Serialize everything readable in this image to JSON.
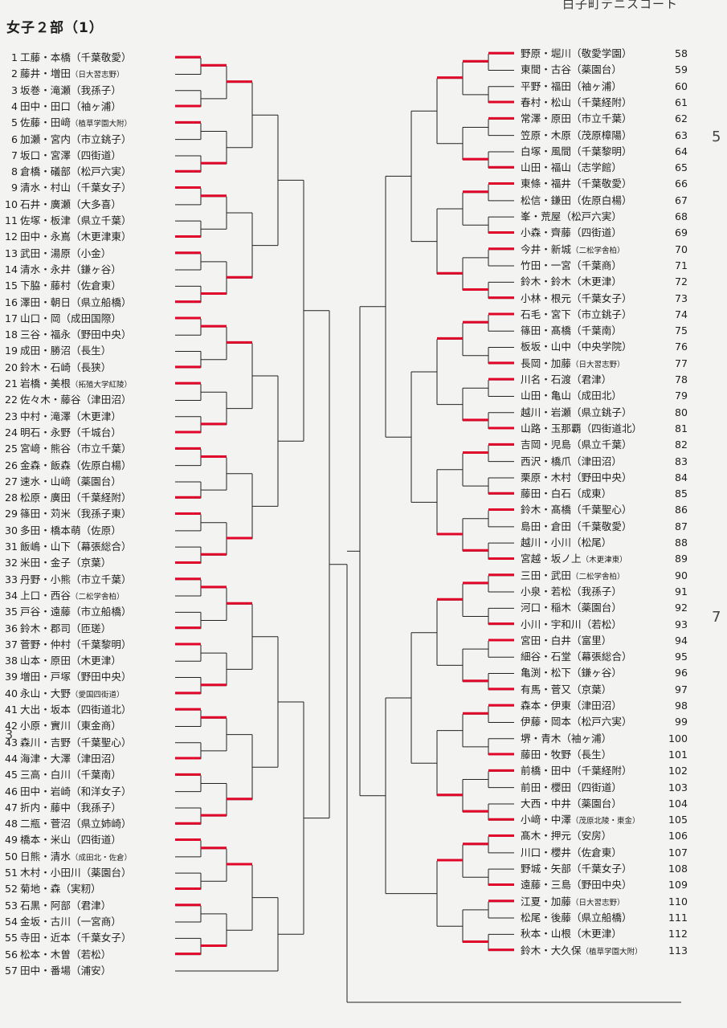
{
  "header": {
    "title": "女子２部（1）",
    "venue_partial": "白子町テニスコート"
  },
  "left_entries": [
    {
      "no": "1",
      "text": "工藤・本橋（千葉敬愛）"
    },
    {
      "no": "2",
      "text": "藤井・増田",
      "club": "（日大習志野）",
      "small": true
    },
    {
      "no": "3",
      "text": "坂巻・滝瀬（我孫子）"
    },
    {
      "no": "4",
      "text": "田中・田口（袖ヶ浦）"
    },
    {
      "no": "5",
      "text": "佐藤・田﨑",
      "club": "（植草学園大附）",
      "small": true
    },
    {
      "no": "6",
      "text": "加瀬・宮内（市立銚子）"
    },
    {
      "no": "7",
      "text": "坂口・宮澤（四街道）"
    },
    {
      "no": "8",
      "text": "倉橋・礒部（松戸六実）"
    },
    {
      "no": "9",
      "text": "清水・村山（千葉女子）"
    },
    {
      "no": "10",
      "text": "石井・廣瀬（大多喜）"
    },
    {
      "no": "11",
      "text": "佐塚・板津（県立千葉）"
    },
    {
      "no": "12",
      "text": "田中・永嶌（木更津東）"
    },
    {
      "no": "13",
      "text": "武田・湯原（小金）"
    },
    {
      "no": "14",
      "text": "清水・永井（鎌ヶ谷）"
    },
    {
      "no": "15",
      "text": "下脇・藤村（佐倉東）"
    },
    {
      "no": "16",
      "text": "澤田・朝日（県立船橋）"
    },
    {
      "no": "17",
      "text": "山口・岡（成田国際）"
    },
    {
      "no": "18",
      "text": "三谷・福永（野田中央）"
    },
    {
      "no": "19",
      "text": "成田・勝沼（長生）"
    },
    {
      "no": "20",
      "text": "鈴木・石崎（長狭）"
    },
    {
      "no": "21",
      "text": "岩橋・美根",
      "club": "（拓殖大学紅陵）",
      "small": true
    },
    {
      "no": "22",
      "text": "佐々木・藤谷（津田沼）"
    },
    {
      "no": "23",
      "text": "中村・滝澤（木更津）"
    },
    {
      "no": "24",
      "text": "明石・永野（千城台）"
    },
    {
      "no": "25",
      "text": "宮﨑・熊谷（市立千葉）"
    },
    {
      "no": "26",
      "text": "金森・飯森（佐原白楊）"
    },
    {
      "no": "27",
      "text": "速水・山﨑（薬園台）"
    },
    {
      "no": "28",
      "text": "松原・廣田（千葉経附）"
    },
    {
      "no": "29",
      "text": "篠田・苅米（我孫子東）"
    },
    {
      "no": "30",
      "text": "多田・橋本萌（佐原）"
    },
    {
      "no": "31",
      "text": "飯嶋・山下（幕張総合）"
    },
    {
      "no": "32",
      "text": "米田・金子（京葉）"
    },
    {
      "no": "33",
      "text": "丹野・小熊（市立千葉）"
    },
    {
      "no": "34",
      "text": "上口・西谷",
      "club": "（二松学舎柏）",
      "small": true
    },
    {
      "no": "35",
      "text": "戸谷・遠藤（市立船橋）"
    },
    {
      "no": "36",
      "text": "鈴木・郡司（匝瑳）"
    },
    {
      "no": "37",
      "text": "菅野・仲村（千葉黎明）"
    },
    {
      "no": "38",
      "text": "山本・原田（木更津）"
    },
    {
      "no": "39",
      "text": "増田・戸塚（野田中央）"
    },
    {
      "no": "40",
      "text": "永山・大野",
      "club": "（愛国四街道）",
      "small": true
    },
    {
      "no": "41",
      "text": "大出・坂本（四街道北）"
    },
    {
      "no": "42",
      "text": "小原・實川（東金商）"
    },
    {
      "no": "43",
      "text": "森川・吉野（千葉聖心）"
    },
    {
      "no": "44",
      "text": "海津・大澤（津田沼）"
    },
    {
      "no": "45",
      "text": "三高・白川（千葉南）"
    },
    {
      "no": "46",
      "text": "田中・岩崎（和洋女子）"
    },
    {
      "no": "47",
      "text": "折内・藤中（我孫子）"
    },
    {
      "no": "48",
      "text": "二瓶・菅沼（県立姉崎）"
    },
    {
      "no": "49",
      "text": "橋本・米山（四街道）"
    },
    {
      "no": "50",
      "text": "日熊・清水",
      "club": "（成田北・佐倉）",
      "small": true
    },
    {
      "no": "51",
      "text": "木村・小田川（薬園台）"
    },
    {
      "no": "52",
      "text": "菊地・森（実籾）"
    },
    {
      "no": "53",
      "text": "石黒・阿部（君津）"
    },
    {
      "no": "54",
      "text": "金坂・古川（一宮商）"
    },
    {
      "no": "55",
      "text": "寺田・近本（千葉女子）"
    },
    {
      "no": "56",
      "text": "松本・木曽（若松）"
    },
    {
      "no": "57",
      "text": "田中・番場（浦安）"
    }
  ],
  "right_entries": [
    {
      "no": "58",
      "text": "野原・堀川（敬愛学園）"
    },
    {
      "no": "59",
      "text": "東間・古谷（薬園台）"
    },
    {
      "no": "60",
      "text": "平野・福田（袖ヶ浦）"
    },
    {
      "no": "61",
      "text": "春村・松山（千葉経附）"
    },
    {
      "no": "62",
      "text": "常澤・原田（市立千葉）"
    },
    {
      "no": "63",
      "text": "笠原・木原（茂原樟陽）"
    },
    {
      "no": "64",
      "text": "白塚・風間（千葉黎明）"
    },
    {
      "no": "65",
      "text": "山田・福山（志学館）"
    },
    {
      "no": "66",
      "text": "東條・福井（千葉敬愛）"
    },
    {
      "no": "67",
      "text": "松信・鎌田（佐原白楊）"
    },
    {
      "no": "68",
      "text": "峯・荒屋（松戸六実）"
    },
    {
      "no": "69",
      "text": "小森・齊藤（四街道）"
    },
    {
      "no": "70",
      "text": "今井・新城",
      "club": "（二松学舎柏）",
      "small": true
    },
    {
      "no": "71",
      "text": "竹田・一宮（千葉商）"
    },
    {
      "no": "72",
      "text": "鈴木・鈴木（木更津）"
    },
    {
      "no": "73",
      "text": "小林・根元（千葉女子）"
    },
    {
      "no": "74",
      "text": "石毛・宮下（市立銚子）"
    },
    {
      "no": "75",
      "text": "篠田・髙橋（千葉南）"
    },
    {
      "no": "76",
      "text": "板坂・山中（中央学院）"
    },
    {
      "no": "77",
      "text": "長岡・加藤",
      "club": "（日大習志野）",
      "small": true
    },
    {
      "no": "78",
      "text": "川名・石渡（君津）"
    },
    {
      "no": "79",
      "text": "山田・亀山（成田北）"
    },
    {
      "no": "80",
      "text": "越川・岩瀬（県立銚子）"
    },
    {
      "no": "81",
      "text": "山路・玉那覇（四街道北）"
    },
    {
      "no": "82",
      "text": "吉岡・児島（県立千葉）"
    },
    {
      "no": "83",
      "text": "西沢・橋爪（津田沼）"
    },
    {
      "no": "84",
      "text": "栗原・木村（野田中央）"
    },
    {
      "no": "85",
      "text": "藤田・白石（成東）"
    },
    {
      "no": "86",
      "text": "鈴木・髙橋（千葉聖心）"
    },
    {
      "no": "87",
      "text": "島田・倉田（千葉敬愛）"
    },
    {
      "no": "88",
      "text": "越川・小川（松尾）"
    },
    {
      "no": "89",
      "text": "宮越・坂ノ上",
      "club": "（木更津東）",
      "small": true
    },
    {
      "no": "90",
      "text": "三田・武田",
      "club": "（二松学舎柏）",
      "small": true
    },
    {
      "no": "91",
      "text": "小泉・若松（我孫子）"
    },
    {
      "no": "92",
      "text": "河口・稲木（薬園台）"
    },
    {
      "no": "93",
      "text": "小川・宇和川（若松）"
    },
    {
      "no": "94",
      "text": "宮田・白井（富里）"
    },
    {
      "no": "95",
      "text": "細谷・石堂（幕張総合）"
    },
    {
      "no": "96",
      "text": "亀渕・松下（鎌ヶ谷）"
    },
    {
      "no": "97",
      "text": "有馬・菅又（京葉）"
    },
    {
      "no": "98",
      "text": "森本・伊東（津田沼）"
    },
    {
      "no": "99",
      "text": "伊藤・岡本（松戸六実）"
    },
    {
      "no": "100",
      "text": "堺・青木（袖ヶ浦）"
    },
    {
      "no": "101",
      "text": "藤田・牧野（長生）"
    },
    {
      "no": "102",
      "text": "前橋・田中（千葉経附）"
    },
    {
      "no": "103",
      "text": "前田・櫻田（四街道）"
    },
    {
      "no": "104",
      "text": "大西・中井（薬園台）"
    },
    {
      "no": "105",
      "text": "小﨑・中澤",
      "club": "（茂原北陵・東金）",
      "small": true
    },
    {
      "no": "106",
      "text": "髙木・押元（安房）"
    },
    {
      "no": "107",
      "text": "川口・櫻井（佐倉東）"
    },
    {
      "no": "108",
      "text": "野城・矢部（千葉女子）"
    },
    {
      "no": "109",
      "text": "遠藤・三島（野田中央）"
    },
    {
      "no": "110",
      "text": "江夏・加藤",
      "club": "（日大習志野）",
      "small": true
    },
    {
      "no": "111",
      "text": "松尾・後藤（県立船橋）"
    },
    {
      "no": "112",
      "text": "秋本・山根（木更津）"
    },
    {
      "no": "113",
      "text": "鈴木・大久保",
      "club": "（植草学園大附）",
      "small": true
    }
  ],
  "margin_marks": [
    "5",
    "7",
    "3"
  ],
  "ink_colors": {
    "bracket": "#222222",
    "marker": "#e0062a"
  }
}
